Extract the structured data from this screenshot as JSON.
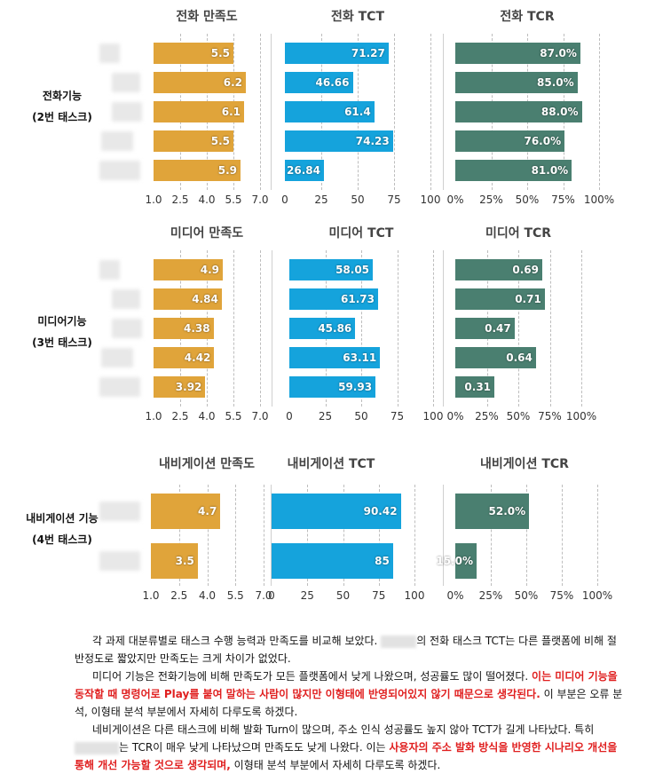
{
  "colors": {
    "satisfaction": "#e0a43a",
    "tct": "#15a3dc",
    "tcr": "#4a7f70"
  },
  "groups": [
    {
      "label_line1": "전화기능",
      "label_line2": "(2번 태스크)",
      "charts": [
        {
          "title": "전화 만족도",
          "type": "bar",
          "values": [
            5.5,
            6.2,
            6.1,
            5.5,
            5.9
          ],
          "labels": [
            "5.5",
            "6.2",
            "6.1",
            "5.5",
            "5.9"
          ],
          "ticks": [
            "1.0",
            "2.5",
            "4.0",
            "5.5",
            "7.0"
          ],
          "xlim": [
            1,
            7
          ]
        },
        {
          "title": "전화 TCT",
          "type": "bar",
          "values": [
            71.27,
            46.66,
            61.4,
            74.23,
            26.84
          ],
          "labels": [
            "71.27",
            "46.66",
            "61.4",
            "74.23",
            "26.84"
          ],
          "ticks": [
            "0",
            "25",
            "50",
            "75",
            "100"
          ],
          "xlim": [
            0,
            100
          ]
        },
        {
          "title": "전화 TCR",
          "type": "bar",
          "values": [
            87,
            85,
            88,
            76,
            81
          ],
          "labels": [
            "87.0%",
            "85.0%",
            "88.0%",
            "76.0%",
            "81.0%"
          ],
          "ticks": [
            "0%",
            "25%",
            "50%",
            "75%",
            "100%"
          ],
          "xlim": [
            0,
            100
          ]
        }
      ]
    },
    {
      "label_line1": "미디어기능",
      "label_line2": "(3번 태스크)",
      "charts": [
        {
          "title": "미디어 만족도",
          "type": "bar",
          "values": [
            4.9,
            4.84,
            4.38,
            4.42,
            3.92
          ],
          "labels": [
            "4.9",
            "4.84",
            "4.38",
            "4.42",
            "3.92"
          ],
          "ticks": [
            "1.0",
            "2.5",
            "4.0",
            "5.5",
            "7.0"
          ],
          "xlim": [
            1,
            7
          ]
        },
        {
          "title": "미디어 TCT",
          "type": "bar",
          "values": [
            58.05,
            61.73,
            45.86,
            63.11,
            59.93
          ],
          "labels": [
            "58.05",
            "61.73",
            "45.86",
            "63.11",
            "59.93"
          ],
          "ticks": [
            "0",
            "25",
            "50",
            "75",
            "100"
          ],
          "xlim": [
            0,
            100
          ]
        },
        {
          "title": "미디어 TCR",
          "type": "bar",
          "values": [
            69,
            71,
            47,
            64,
            31
          ],
          "labels": [
            "0.69",
            "0.71",
            "0.47",
            "0.64",
            "0.31"
          ],
          "ticks": [
            "0%",
            "25%",
            "50%",
            "75%",
            "100%"
          ],
          "xlim": [
            0,
            100
          ]
        }
      ]
    },
    {
      "label_line1": "내비게이션 기능",
      "label_line2": "(4번 태스크)",
      "charts": [
        {
          "title": "내비게이션 만족도",
          "type": "bar",
          "values": [
            4.7,
            3.5
          ],
          "labels": [
            "4.7",
            "3.5"
          ],
          "ticks": [
            "1.0",
            "2.5",
            "4.0",
            "5.5",
            "7.0"
          ],
          "xlim": [
            1,
            7
          ]
        },
        {
          "title": "내비게이션 TCT",
          "type": "bar",
          "values": [
            90.42,
            85
          ],
          "labels": [
            "90.42",
            "85"
          ],
          "ticks": [
            "0",
            "25",
            "50",
            "75",
            "100"
          ],
          "xlim": [
            0,
            100
          ]
        },
        {
          "title": "내비게이션 TCR",
          "type": "bar",
          "values": [
            52,
            15
          ],
          "labels": [
            "52.0%",
            "15.0%"
          ],
          "ticks": [
            "0%",
            "25%",
            "50%",
            "75%",
            "100%"
          ],
          "xlim": [
            0,
            100
          ]
        }
      ]
    }
  ],
  "chart_data": [
    {
      "type": "bar",
      "title": "전화 만족도",
      "values": [
        5.5,
        6.2,
        6.1,
        5.5,
        5.9
      ],
      "xlim": [
        1,
        7
      ]
    },
    {
      "type": "bar",
      "title": "전화 TCT",
      "values": [
        71.27,
        46.66,
        61.4,
        74.23,
        26.84
      ],
      "xlim": [
        0,
        100
      ]
    },
    {
      "type": "bar",
      "title": "전화 TCR",
      "values": [
        87,
        85,
        88,
        76,
        81
      ],
      "xlim": [
        0,
        100
      ]
    },
    {
      "type": "bar",
      "title": "미디어 만족도",
      "values": [
        4.9,
        4.84,
        4.38,
        4.42,
        3.92
      ],
      "xlim": [
        1,
        7
      ]
    },
    {
      "type": "bar",
      "title": "미디어 TCT",
      "values": [
        58.05,
        61.73,
        45.86,
        63.11,
        59.93
      ],
      "xlim": [
        0,
        100
      ]
    },
    {
      "type": "bar",
      "title": "미디어 TCR",
      "values": [
        0.69,
        0.71,
        0.47,
        0.64,
        0.31
      ],
      "xlim": [
        0,
        1
      ]
    },
    {
      "type": "bar",
      "title": "내비게이션 만족도",
      "values": [
        4.7,
        3.5
      ],
      "xlim": [
        1,
        7
      ]
    },
    {
      "type": "bar",
      "title": "내비게이션 TCT",
      "values": [
        90.42,
        85
      ],
      "xlim": [
        0,
        100
      ]
    },
    {
      "type": "bar",
      "title": "내비게이션 TCR",
      "values": [
        52,
        15
      ],
      "xlim": [
        0,
        100
      ]
    }
  ],
  "text": {
    "p1a": "각 과제 대분류별로 태스크 수행 능력과 만족도를 비교해 보았다.",
    "p1b": "의 전화 태스크 TCT는 다른 플랫폼에 비해 절반정도로 짧았지만 만족도는 크게 차이가 없었다.",
    "p2a": "미디어 기능은 전화기능에 비해 만족도가 모든 플랫폼에서 낮게 나왔으며, 성공률도 많이 떨어졌다.",
    "p2red": "이는 미디어 기능을 동작할 때 명령어로 Play를 붙여 말하는 사람이 많지만 이형태에 반영되어있지 않기 때문으로 생각된다.",
    "p2b": "이 부분은 오류 분석, 이형태 분석 부분에서 자세히 다루도록 하겠다.",
    "p3a": "네비게이션은 다른 태스크에 비해 발화 Turn이 많으며, 주소 인식 성공률도 높지 않아 TCT가 길게 나타났다. 특히",
    "p3b": "는 TCR이 매우 낮게 나타났으며 만족도도 낮게 나왔다. 이는",
    "p3red": "사용자의 주소 발화 방식을 반영한 시나리오 개선을 통해 개선 가능할 것으로 생각되며,",
    "p3c": "이형태 분석 부분에서 자세히 다루도록 하겠다."
  }
}
